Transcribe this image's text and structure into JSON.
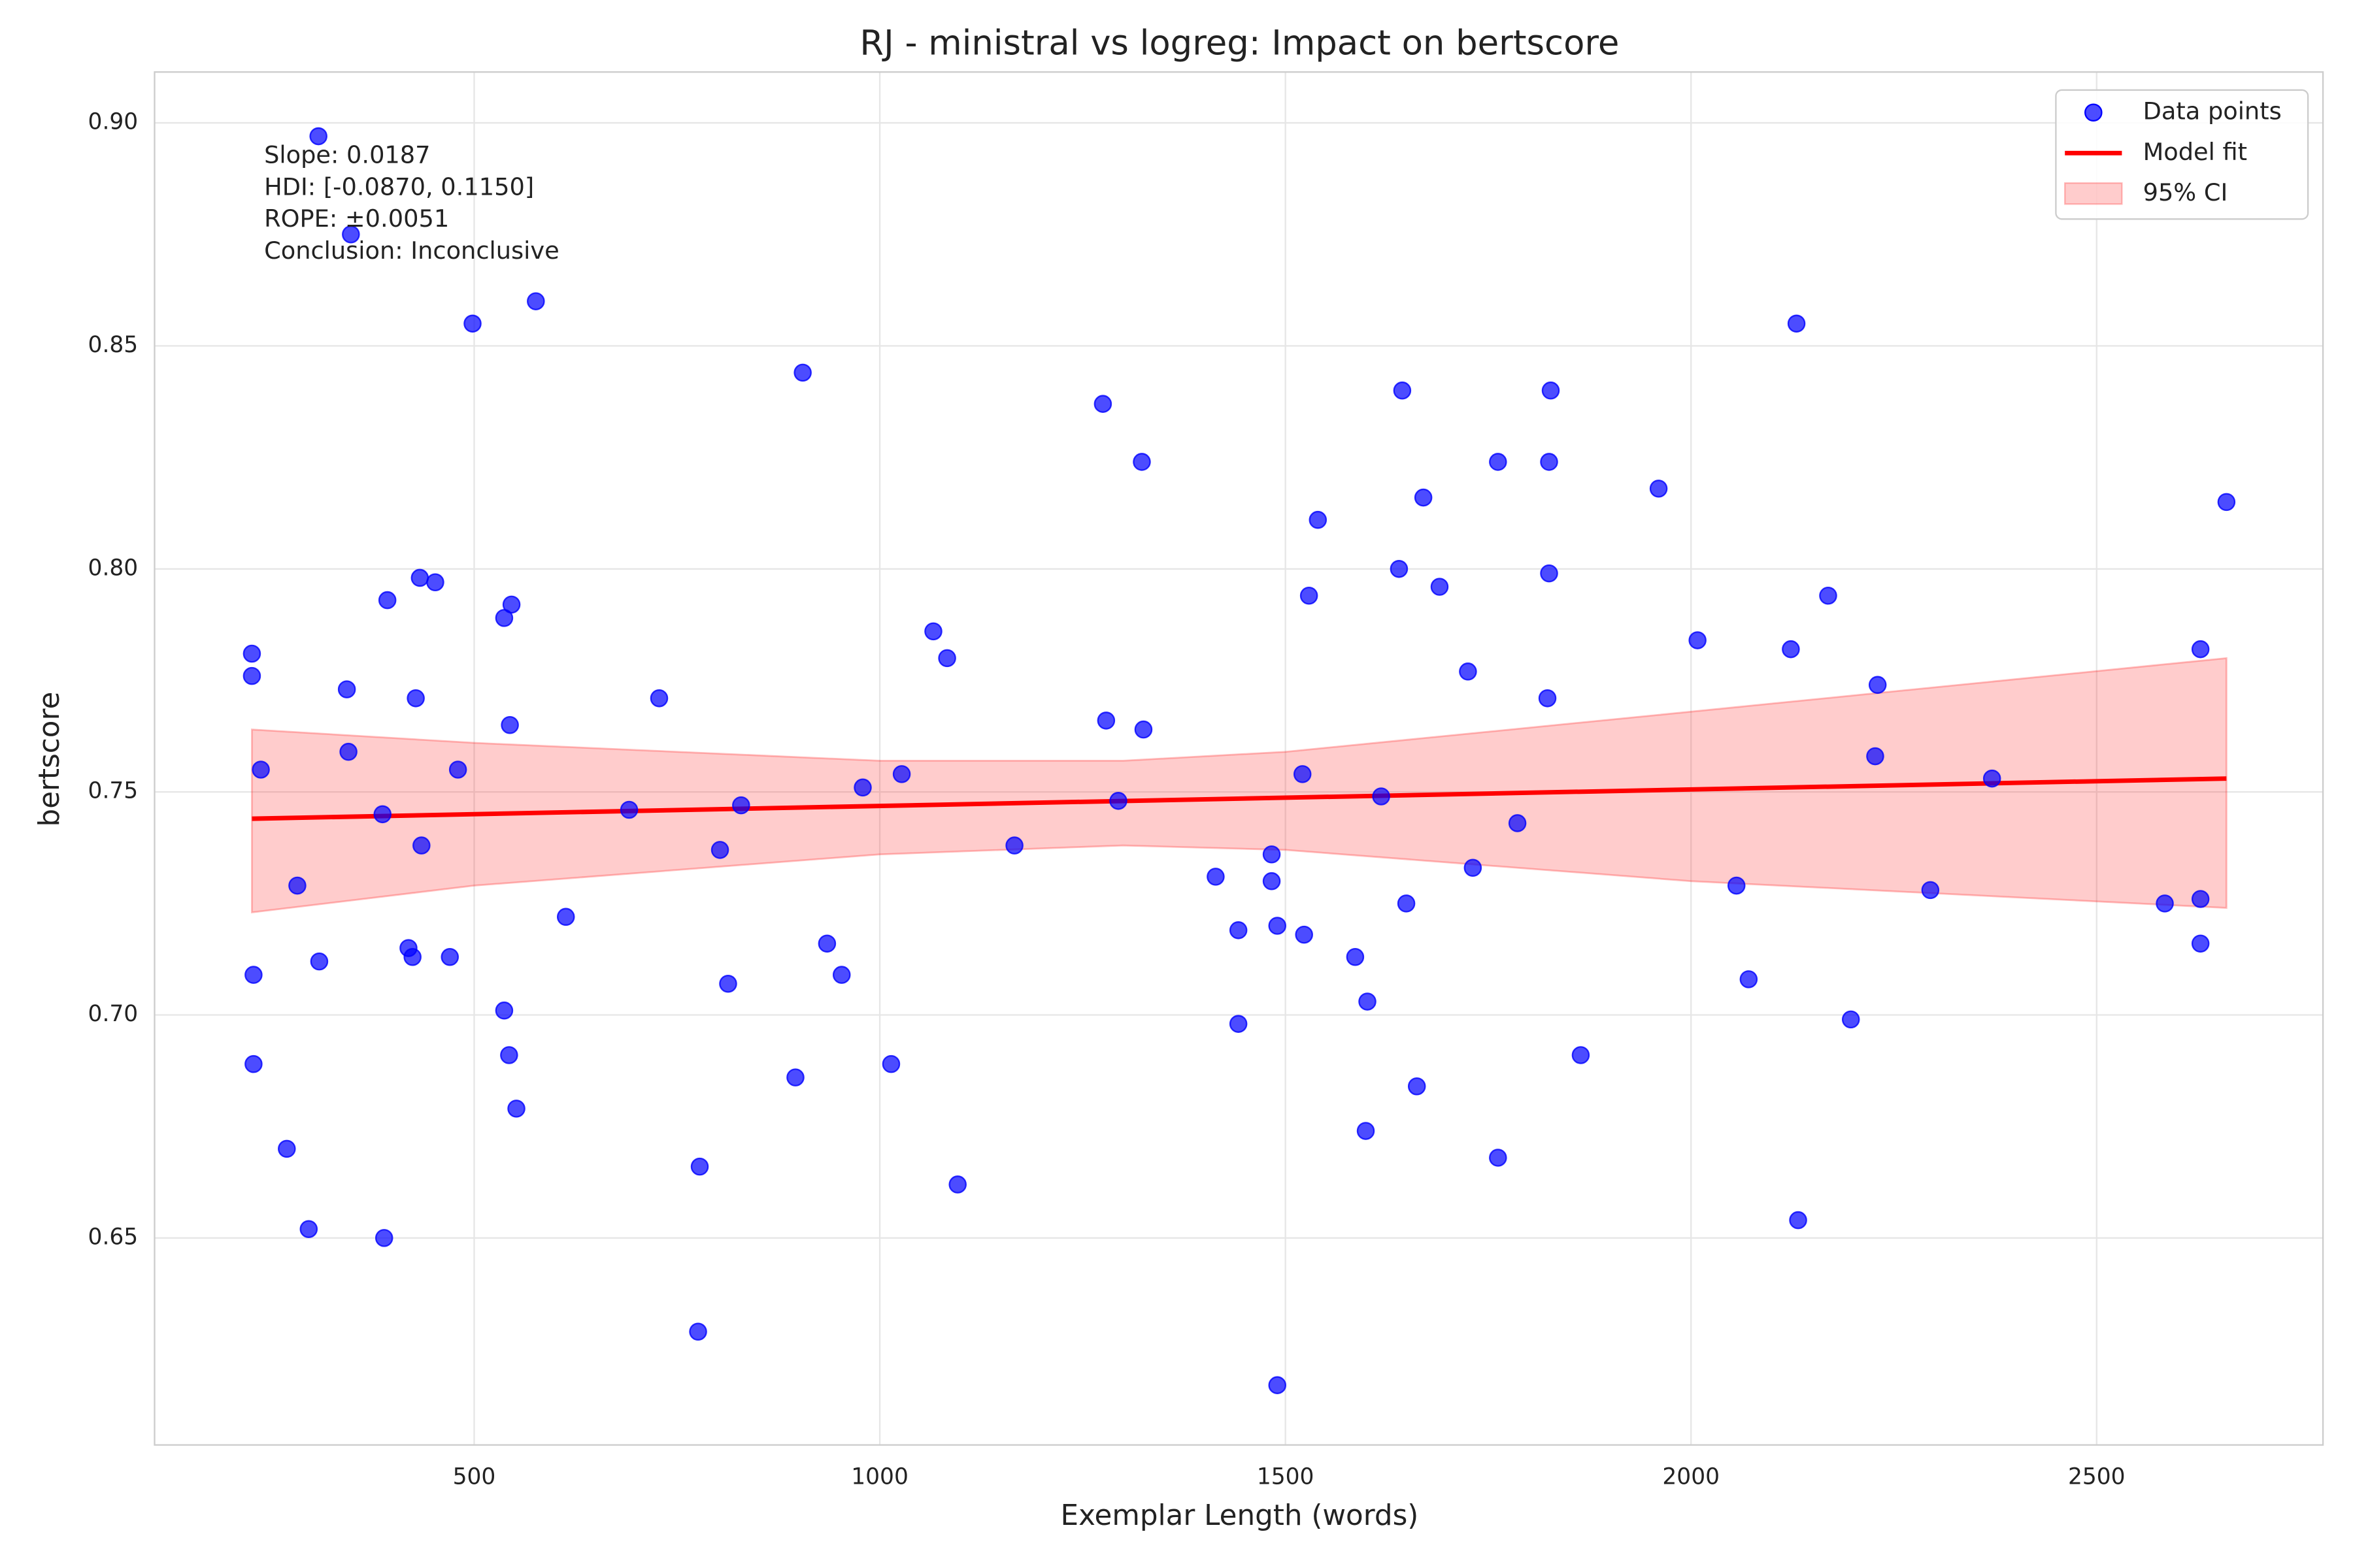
{
  "chart_data": {
    "type": "scatter",
    "title": "RJ - ministral vs logreg: Impact on bertscore",
    "x_label": "Exemplar Length (words)",
    "y_label": "bertscore",
    "annotation": [
      "Slope: 0.0187",
      "HDI: [-0.0870, 0.1150]",
      "ROPE: ±0.0051",
      "Conclusion: Inconclusive"
    ],
    "xlim": [
      106,
      2779
    ],
    "ylim": [
      0.6036,
      0.9114
    ],
    "xticks": [
      500,
      1000,
      1500,
      2000,
      2500
    ],
    "yticks": [
      {
        "value": 0.9,
        "label": "0.90"
      },
      0.85,
      {
        "value": 0.8,
        "label": "0.80"
      },
      0.75,
      {
        "value": 0.7,
        "label": "0.70"
      },
      0.65
    ],
    "grid": true,
    "legend": "upper right",
    "series": [
      {
        "name": "Data points",
        "kind": "scatter",
        "color": "#0000ff",
        "x": [
          226,
          226,
          237,
          228,
          228,
          269,
          282,
          296,
          308,
          309,
          343,
          345,
          348,
          387,
          389,
          393,
          419,
          424,
          428,
          433,
          435,
          452,
          470,
          480,
          498,
          537,
          537,
          543,
          544,
          546,
          552,
          576,
          613,
          691,
          728,
          776,
          778,
          803,
          813,
          829,
          896,
          905,
          935,
          953,
          979,
          1014,
          1027,
          1066,
          1083,
          1096,
          1166,
          1275,
          1279,
          1294,
          1323,
          1325,
          1414,
          1442,
          1442,
          1483,
          1483,
          1490,
          1490,
          1521,
          1523,
          1529,
          1540,
          1586,
          1599,
          1601,
          1618,
          1640,
          1644,
          1649,
          1662,
          1670,
          1690,
          1725,
          1731,
          1762,
          1762,
          1786,
          1823,
          1825,
          1825,
          1827,
          1864,
          1960,
          2008,
          2056,
          2071,
          2123,
          2130,
          2132,
          2169,
          2197,
          2227,
          2230,
          2295,
          2371,
          2584,
          2628,
          2628,
          2628,
          2660
        ],
        "values": [
          0.781,
          0.776,
          0.755,
          0.709,
          0.689,
          0.67,
          0.729,
          0.652,
          0.897,
          0.712,
          0.773,
          0.759,
          0.875,
          0.745,
          0.65,
          0.793,
          0.715,
          0.713,
          0.771,
          0.798,
          0.738,
          0.797,
          0.713,
          0.755,
          0.855,
          0.701,
          0.789,
          0.691,
          0.765,
          0.792,
          0.679,
          0.86,
          0.722,
          0.746,
          0.771,
          0.629,
          0.666,
          0.737,
          0.707,
          0.747,
          0.686,
          0.844,
          0.716,
          0.709,
          0.751,
          0.689,
          0.754,
          0.786,
          0.78,
          0.662,
          0.738,
          0.837,
          0.766,
          0.748,
          0.824,
          0.764,
          0.731,
          0.719,
          0.698,
          0.736,
          0.73,
          0.72,
          0.617,
          0.754,
          0.718,
          0.794,
          0.811,
          0.713,
          0.674,
          0.703,
          0.749,
          0.8,
          0.84,
          0.725,
          0.684,
          0.816,
          0.796,
          0.777,
          0.733,
          0.824,
          0.668,
          0.743,
          0.771,
          0.799,
          0.824,
          0.84,
          0.691,
          0.818,
          0.784,
          0.729,
          0.708,
          0.782,
          0.855,
          0.654,
          0.794,
          0.699,
          0.758,
          0.774,
          0.728,
          0.753,
          0.725,
          0.716,
          0.782,
          0.726,
          0.815
        ]
      },
      {
        "name": "Model fit",
        "kind": "line",
        "color": "#ff0000",
        "x": [
          226,
          2660
        ],
        "values": [
          0.744,
          0.753
        ]
      },
      {
        "name": "95% CI",
        "kind": "band",
        "color": "#ff0000",
        "x": [
          226,
          500,
          1000,
          1300,
          1500,
          2000,
          2660
        ],
        "upper": [
          0.764,
          0.761,
          0.757,
          0.757,
          0.759,
          0.768,
          0.78
        ],
        "lower": [
          0.723,
          0.729,
          0.736,
          0.738,
          0.737,
          0.73,
          0.724
        ]
      }
    ]
  }
}
